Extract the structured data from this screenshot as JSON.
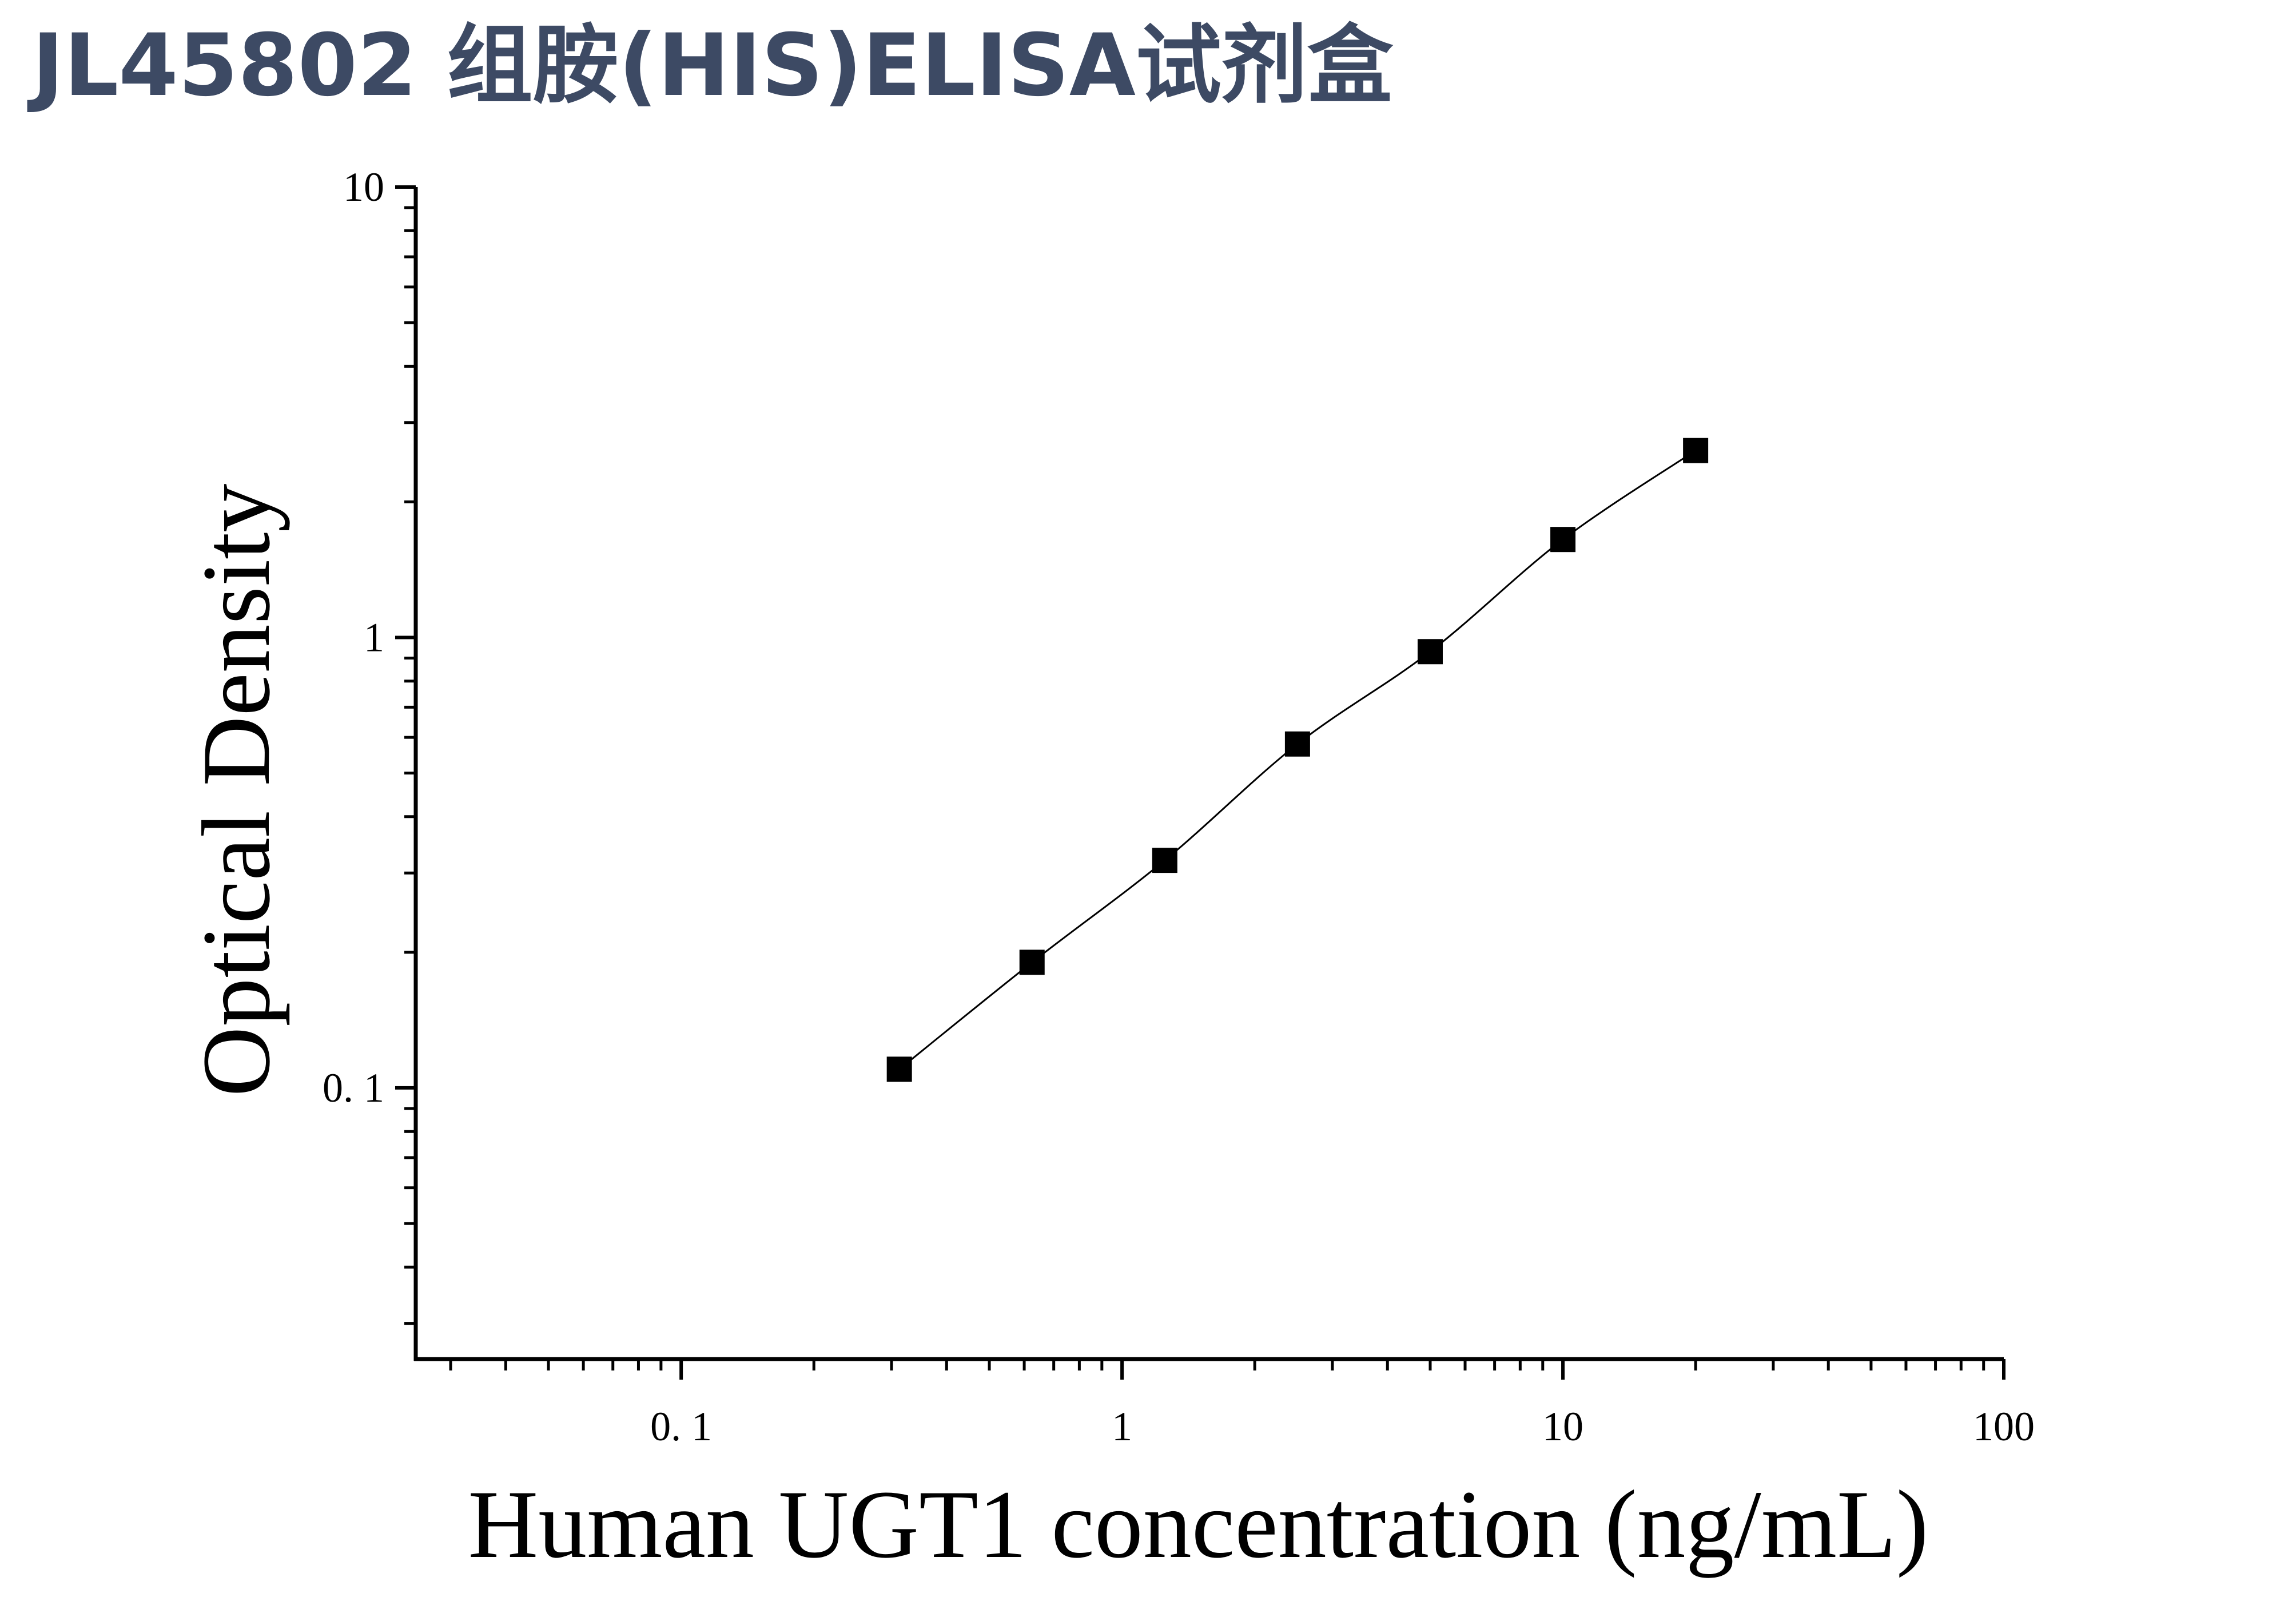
{
  "header": {
    "title": "JL45802 组胺(HIS)ELISA试剂盒"
  },
  "colors": {
    "title": "#3d4a64",
    "marks": "#000000"
  },
  "chart_data": {
    "type": "scatter",
    "title": "",
    "xlabel": "Human UGT1 concentration (ng/mL)",
    "ylabel": "Optical Density",
    "x_scale": "log",
    "y_scale": "log",
    "xlim": [
      0.025,
      100
    ],
    "ylim": [
      0.025,
      10
    ],
    "x_ticks": [
      "0. 1",
      "1",
      "10",
      "100"
    ],
    "y_ticks": [
      "0. 1",
      "1",
      "10"
    ],
    "grid": false,
    "fit_curve": true,
    "series": [
      {
        "marker": "square",
        "x": [
          0.3125,
          0.625,
          1.25,
          2.5,
          5,
          10,
          20
        ],
        "y": [
          0.11,
          0.19,
          0.32,
          0.58,
          0.93,
          1.65,
          2.6
        ]
      }
    ]
  }
}
